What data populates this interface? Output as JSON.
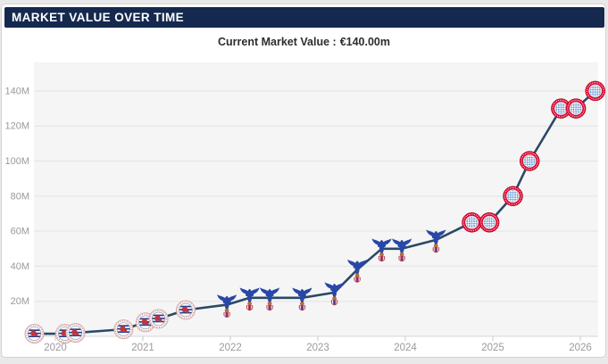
{
  "header": {
    "title": "MARKET VALUE OVER TIME"
  },
  "subtitle": {
    "label": "Current Market Value :",
    "value": "€140.00m"
  },
  "colors": {
    "header_bg": "#15294e",
    "line": "#2b4966",
    "plot_bg": "#f5f5f6",
    "grid": "#e3e3e4",
    "axis_line": "#d8d8da",
    "tick": "#c9c9c9",
    "axis_text": "#9a9aa0",
    "bayern_red": "#dc052d",
    "bayern_check_blue": "#69a0d6",
    "palace_blue": "#2847a8",
    "palace_shield_red": "#d23b4e",
    "palace_ball": "#bf6a33",
    "reading_navy": "#25408f",
    "reading_red": "#c13440",
    "reading_ring": "#d5a8a8"
  },
  "chart_data": {
    "type": "line",
    "title": "Market value over time",
    "subtitle": "Current Market Value : €140.00m",
    "x_ticks": [
      2020,
      2021,
      2022,
      2023,
      2024,
      2025,
      2026
    ],
    "y_ticks": [
      {
        "value_m": 20,
        "label": "20M"
      },
      {
        "value_m": 40,
        "label": "40M"
      },
      {
        "value_m": 60,
        "label": "60M"
      },
      {
        "value_m": 80,
        "label": "80M"
      },
      {
        "value_m": 100,
        "label": "100M"
      },
      {
        "value_m": 120,
        "label": "120M"
      },
      {
        "value_m": 140,
        "label": "140M"
      }
    ],
    "xlim": [
      2019.755,
      2026.204
    ],
    "ylim_m": [
      0,
      156.25
    ],
    "grid": "horizontal-only",
    "legend": "none",
    "unit": "€ million",
    "clubs": {
      "reading-fc": "Reading FC",
      "crystal-palace": "Crystal Palace",
      "bayern-munich": "Bayern Munich"
    },
    "series": [
      {
        "name": "Market value",
        "points": [
          {
            "x": 2019.76,
            "value_m": 1.5,
            "club": "reading-fc"
          },
          {
            "x": 2020.11,
            "value_m": 1.5,
            "club": "reading-fc"
          },
          {
            "x": 2020.23,
            "value_m": 2,
            "club": "reading-fc"
          },
          {
            "x": 2020.78,
            "value_m": 4,
            "club": "reading-fc"
          },
          {
            "x": 2021.03,
            "value_m": 8,
            "club": "reading-fc"
          },
          {
            "x": 2021.18,
            "value_m": 10,
            "club": "reading-fc"
          },
          {
            "x": 2021.49,
            "value_m": 15,
            "club": "reading-fc"
          },
          {
            "x": 2021.96,
            "value_m": 18,
            "club": "crystal-palace"
          },
          {
            "x": 2022.22,
            "value_m": 22,
            "club": "crystal-palace"
          },
          {
            "x": 2022.45,
            "value_m": 22,
            "club": "crystal-palace"
          },
          {
            "x": 2022.82,
            "value_m": 22,
            "club": "crystal-palace"
          },
          {
            "x": 2023.19,
            "value_m": 25,
            "club": "crystal-palace"
          },
          {
            "x": 2023.45,
            "value_m": 38,
            "club": "crystal-palace"
          },
          {
            "x": 2023.73,
            "value_m": 50,
            "club": "crystal-palace"
          },
          {
            "x": 2023.96,
            "value_m": 50,
            "club": "crystal-palace"
          },
          {
            "x": 2024.35,
            "value_m": 55,
            "club": "crystal-palace"
          },
          {
            "x": 2024.76,
            "value_m": 65,
            "club": "bayern-munich"
          },
          {
            "x": 2024.96,
            "value_m": 65,
            "club": "bayern-munich"
          },
          {
            "x": 2025.23,
            "value_m": 80,
            "club": "bayern-munich"
          },
          {
            "x": 2025.42,
            "value_m": 100,
            "club": "bayern-munich"
          },
          {
            "x": 2025.78,
            "value_m": 130,
            "club": "bayern-munich"
          },
          {
            "x": 2025.95,
            "value_m": 130,
            "club": "bayern-munich"
          },
          {
            "x": 2026.17,
            "value_m": 140,
            "club": "bayern-munich"
          }
        ]
      }
    ]
  }
}
